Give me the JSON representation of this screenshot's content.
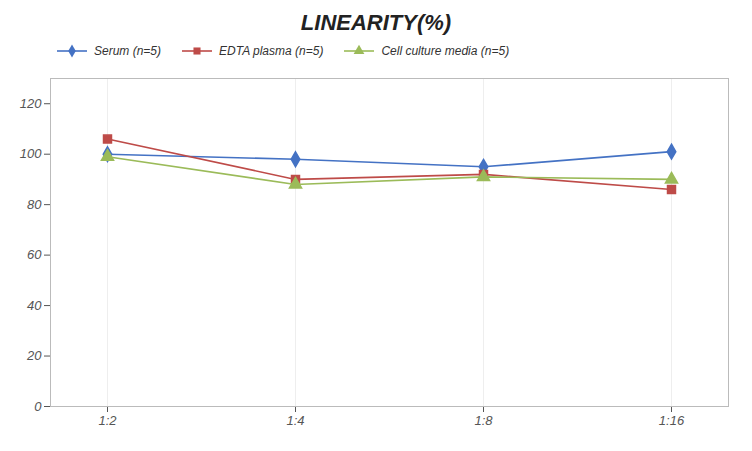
{
  "chart_data": {
    "type": "line",
    "title": "LINEARITY(%)",
    "categories": [
      "1:2",
      "1:4",
      "1:8",
      "1:16"
    ],
    "series": [
      {
        "name": "Serum (n=5)",
        "color": "#4472c4",
        "marker": "diamond",
        "values": [
          100,
          98,
          95,
          101
        ]
      },
      {
        "name": "EDTA plasma (n=5)",
        "color": "#be4b48",
        "marker": "square",
        "values": [
          106,
          90,
          92,
          86
        ]
      },
      {
        "name": "Cell culture media (n=5)",
        "color": "#9bbb59",
        "marker": "triangle",
        "values": [
          99,
          88,
          91,
          90
        ]
      }
    ],
    "ylim": [
      0,
      130
    ],
    "yticks": [
      0,
      20,
      40,
      60,
      80,
      100,
      120
    ],
    "grid": true,
    "legend": "top"
  }
}
